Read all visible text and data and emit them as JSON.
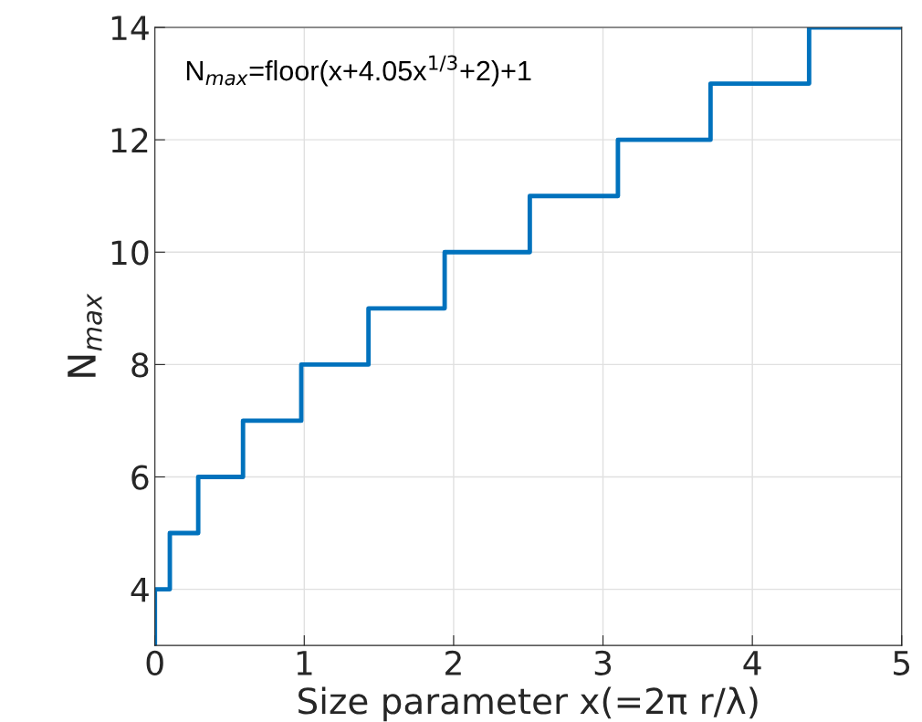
{
  "chart_data": {
    "type": "step",
    "xlabel": "Size parameter x(=2π r/λ)",
    "ylabel": "N$_{max}$",
    "annotations": [
      "N$_{max}$=floor(x+4.05x$^{1/3}$+2)+1"
    ],
    "x": [
      0,
      0,
      0.1,
      0.29,
      0.59,
      0.98,
      1.43,
      1.94,
      2.51,
      3.1,
      3.72,
      4.38,
      5
    ],
    "series": [
      {
        "color": "#0072bd",
        "values": [
          3,
          4,
          5,
          6,
          7,
          8,
          9,
          10,
          11,
          12,
          13,
          14,
          14
        ]
      }
    ],
    "xlim": [
      0,
      5
    ],
    "ylim": [
      3,
      14
    ],
    "xticks": [
      0,
      1,
      2,
      3,
      4,
      5
    ],
    "yticks": [
      4,
      6,
      8,
      10,
      12,
      14
    ],
    "grid": true,
    "line_style": "solid"
  }
}
